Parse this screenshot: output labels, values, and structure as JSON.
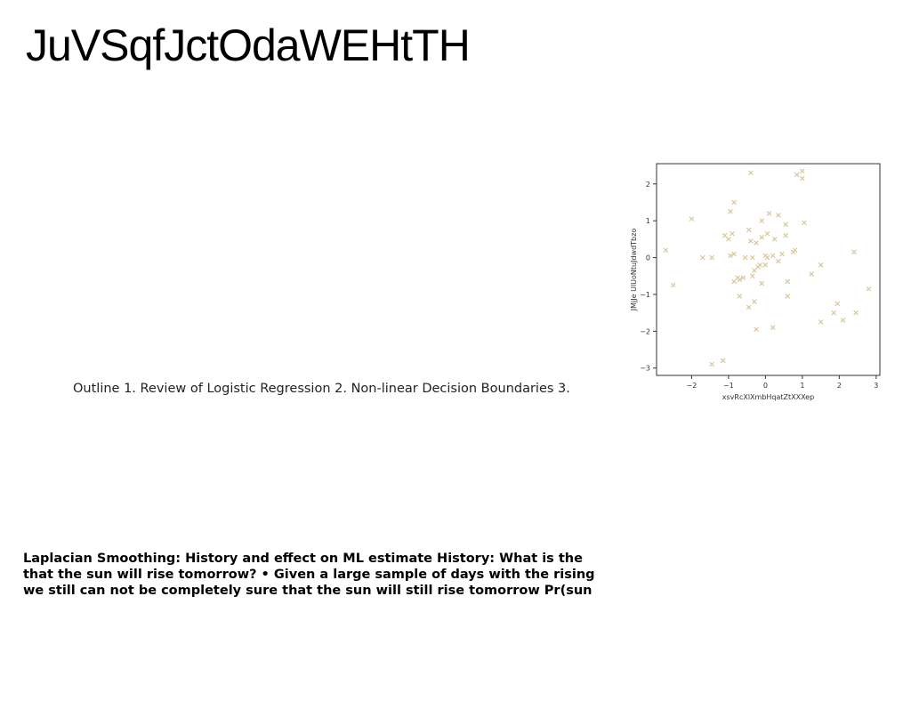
{
  "slide": {
    "title": "JuVSqfJctOdaWEHtTH",
    "outline_text": "Outline 1. Review of Logistic Regression 2. Non-linear Decision Boundaries 3.",
    "laplace_lines": [
      "Laplacian Smoothing: History and effect on ML estimate History: What is the",
      "that the sun will rise tomorrow? • Given a large sample of days with the rising",
      "we still can not be completely sure that the sun will still rise tomorrow Pr(sun"
    ]
  },
  "chart_data": {
    "type": "scatter",
    "xlabel": "xsvRcXlXmbHqatZtXXXep",
    "ylabel": "JMjJe UlUoNtuJdwdTbzo",
    "xlim": [
      -2.95,
      3.1
    ],
    "ylim": [
      -3.2,
      2.55
    ],
    "xticks": [
      "−2",
      "−1",
      "0",
      "1",
      "2",
      "3"
    ],
    "xtick_values": [
      -2,
      -1,
      0,
      1,
      2,
      3
    ],
    "yticks": [
      "2",
      "1",
      "0",
      "−1",
      "−2",
      "−3"
    ],
    "ytick_values": [
      2,
      1,
      0,
      -1,
      -2,
      -3
    ],
    "marker": "x",
    "color": "#d9c79a",
    "points": [
      [
        -2.7,
        0.2
      ],
      [
        -2.5,
        -0.75
      ],
      [
        -2.0,
        1.05
      ],
      [
        -1.7,
        0.0
      ],
      [
        -1.45,
        0.0
      ],
      [
        -1.45,
        -2.9
      ],
      [
        -1.15,
        -2.8
      ],
      [
        -1.1,
        0.6
      ],
      [
        -1.0,
        0.5
      ],
      [
        -0.95,
        1.25
      ],
      [
        -0.85,
        1.5
      ],
      [
        -0.95,
        0.05
      ],
      [
        -0.9,
        0.65
      ],
      [
        -0.85,
        0.1
      ],
      [
        -0.85,
        -0.65
      ],
      [
        -0.75,
        -0.55
      ],
      [
        -0.7,
        -0.6
      ],
      [
        -0.7,
        -1.05
      ],
      [
        -0.6,
        -0.55
      ],
      [
        -0.55,
        0.0
      ],
      [
        -0.45,
        0.75
      ],
      [
        -0.4,
        2.3
      ],
      [
        -0.4,
        0.45
      ],
      [
        -0.45,
        -1.35
      ],
      [
        -0.35,
        -0.5
      ],
      [
        -0.35,
        0.0
      ],
      [
        -0.3,
        -0.35
      ],
      [
        -0.25,
        0.4
      ],
      [
        -0.3,
        -1.2
      ],
      [
        -0.25,
        -1.95
      ],
      [
        -0.2,
        -0.25
      ],
      [
        -0.15,
        -0.2
      ],
      [
        -0.1,
        0.55
      ],
      [
        -0.1,
        1.0
      ],
      [
        -0.1,
        -0.7
      ],
      [
        0.0,
        0.05
      ],
      [
        0.0,
        -0.2
      ],
      [
        0.05,
        0.65
      ],
      [
        0.05,
        0.0
      ],
      [
        0.1,
        1.2
      ],
      [
        0.2,
        0.05
      ],
      [
        0.2,
        -1.9
      ],
      [
        0.25,
        0.5
      ],
      [
        0.35,
        1.15
      ],
      [
        0.35,
        -0.1
      ],
      [
        0.45,
        0.1
      ],
      [
        0.55,
        0.6
      ],
      [
        0.55,
        0.9
      ],
      [
        0.6,
        -0.65
      ],
      [
        0.6,
        -1.05
      ],
      [
        0.75,
        0.15
      ],
      [
        0.8,
        0.2
      ],
      [
        0.85,
        2.25
      ],
      [
        1.0,
        2.35
      ],
      [
        1.0,
        2.15
      ],
      [
        1.05,
        0.95
      ],
      [
        1.25,
        -0.45
      ],
      [
        1.5,
        -0.2
      ],
      [
        1.5,
        -1.75
      ],
      [
        1.85,
        -1.5
      ],
      [
        1.95,
        -1.25
      ],
      [
        2.1,
        -1.7
      ],
      [
        2.4,
        0.15
      ],
      [
        2.45,
        -1.5
      ],
      [
        2.8,
        -0.85
      ]
    ]
  }
}
